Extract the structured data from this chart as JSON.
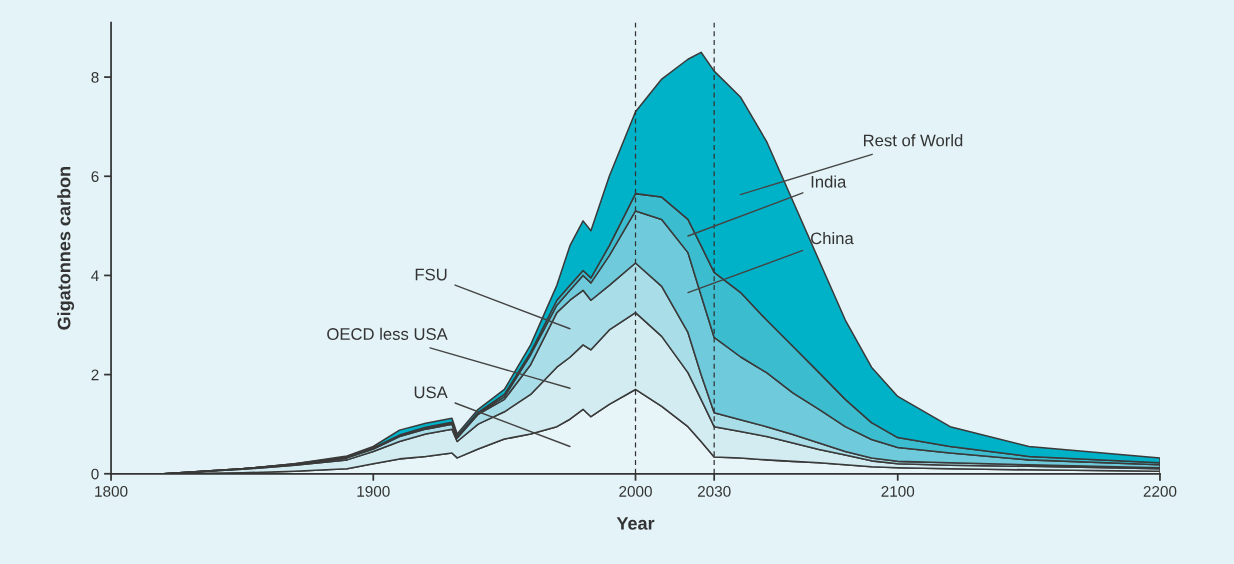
{
  "chart_data": {
    "type": "area",
    "stacked": true,
    "xlabel": "Year",
    "ylabel": "Gigatonnes carbon",
    "x": [
      1820,
      1850,
      1870,
      1890,
      1900,
      1910,
      1920,
      1930,
      1932,
      1940,
      1950,
      1960,
      1970,
      1975,
      1980,
      1983,
      1990,
      2000,
      2010,
      2020,
      2025,
      2030,
      2040,
      2050,
      2060,
      2070,
      2080,
      2090,
      2100,
      2120,
      2150,
      2200
    ],
    "series": [
      {
        "color": "#e8f5f8",
        "values": [
          0,
          0.02,
          0.05,
          0.1,
          0.2,
          0.3,
          0.35,
          0.42,
          0.32,
          0.5,
          0.7,
          0.8,
          0.95,
          1.1,
          1.3,
          1.15,
          1.4,
          1.7,
          1.36,
          0.95,
          0.65,
          0.34,
          0.32,
          0.28,
          0.25,
          0.22,
          0.18,
          0.14,
          0.12,
          0.1,
          0.08,
          0.05
        ]
      },
      {
        "color": "#d3ecf1",
        "values": [
          0,
          0.07,
          0.12,
          0.18,
          0.25,
          0.35,
          0.45,
          0.48,
          0.33,
          0.5,
          0.55,
          0.8,
          1.2,
          1.25,
          1.3,
          1.35,
          1.5,
          1.55,
          1.41,
          1.09,
          0.85,
          0.61,
          0.53,
          0.47,
          0.37,
          0.27,
          0.2,
          0.12,
          0.08,
          0.07,
          0.07,
          0.05
        ]
      },
      {
        "color": "#a9dde8",
        "values": [
          0,
          0.01,
          0.02,
          0.04,
          0.05,
          0.1,
          0.1,
          0.1,
          0.07,
          0.2,
          0.25,
          0.6,
          1.1,
          1.15,
          1.1,
          1.0,
          0.9,
          1.0,
          1.01,
          0.81,
          0.5,
          0.28,
          0.24,
          0.2,
          0.17,
          0.13,
          0.07,
          0.06,
          0.05,
          0.05,
          0.03,
          0.02
        ]
      },
      {
        "color": "#6fcbdb",
        "values": [
          0,
          0,
          0,
          0.01,
          0.01,
          0.02,
          0.02,
          0.02,
          0.02,
          0.02,
          0.05,
          0.2,
          0.15,
          0.2,
          0.3,
          0.35,
          0.6,
          1.05,
          1.35,
          1.61,
          1.6,
          1.52,
          1.27,
          1.09,
          0.84,
          0.68,
          0.5,
          0.37,
          0.28,
          0.2,
          0.1,
          0.06
        ]
      },
      {
        "color": "#3bbccf",
        "values": [
          0,
          0,
          0.01,
          0.01,
          0.01,
          0.01,
          0.02,
          0.02,
          0.01,
          0.02,
          0.05,
          0.05,
          0.1,
          0.1,
          0.1,
          0.1,
          0.2,
          0.35,
          0.45,
          0.67,
          1.0,
          1.31,
          1.3,
          1.06,
          0.94,
          0.74,
          0.55,
          0.34,
          0.2,
          0.13,
          0.07,
          0.04
        ]
      },
      {
        "color": "#00b2c8",
        "values": [
          0,
          0,
          0,
          0.02,
          0.03,
          0.1,
          0.08,
          0.08,
          0.05,
          0.06,
          0.1,
          0.15,
          0.3,
          0.8,
          1.0,
          0.95,
          1.4,
          1.65,
          2.38,
          3.23,
          3.9,
          4.06,
          3.94,
          3.6,
          2.93,
          2.26,
          1.6,
          1.12,
          0.83,
          0.4,
          0.2,
          0.1
        ]
      }
    ],
    "xlim": [
      1800,
      2200
    ],
    "xticks": [
      1800,
      1900,
      2000,
      2030,
      2100,
      2200
    ],
    "ylim": [
      0,
      9.1
    ],
    "yticks": [
      0,
      2,
      4,
      6,
      8
    ],
    "annotations": [
      "Rest of World",
      "India",
      "China",
      "FSU",
      "OECD less USA",
      "USA"
    ],
    "ref_lines": [
      {
        "axis": "x",
        "value": 2000,
        "color": "#333333",
        "line_style": "dashed"
      },
      {
        "axis": "x",
        "value": 2030,
        "color": "#333333",
        "line_style": "dashed"
      }
    ],
    "grid": false,
    "legend": false
  }
}
